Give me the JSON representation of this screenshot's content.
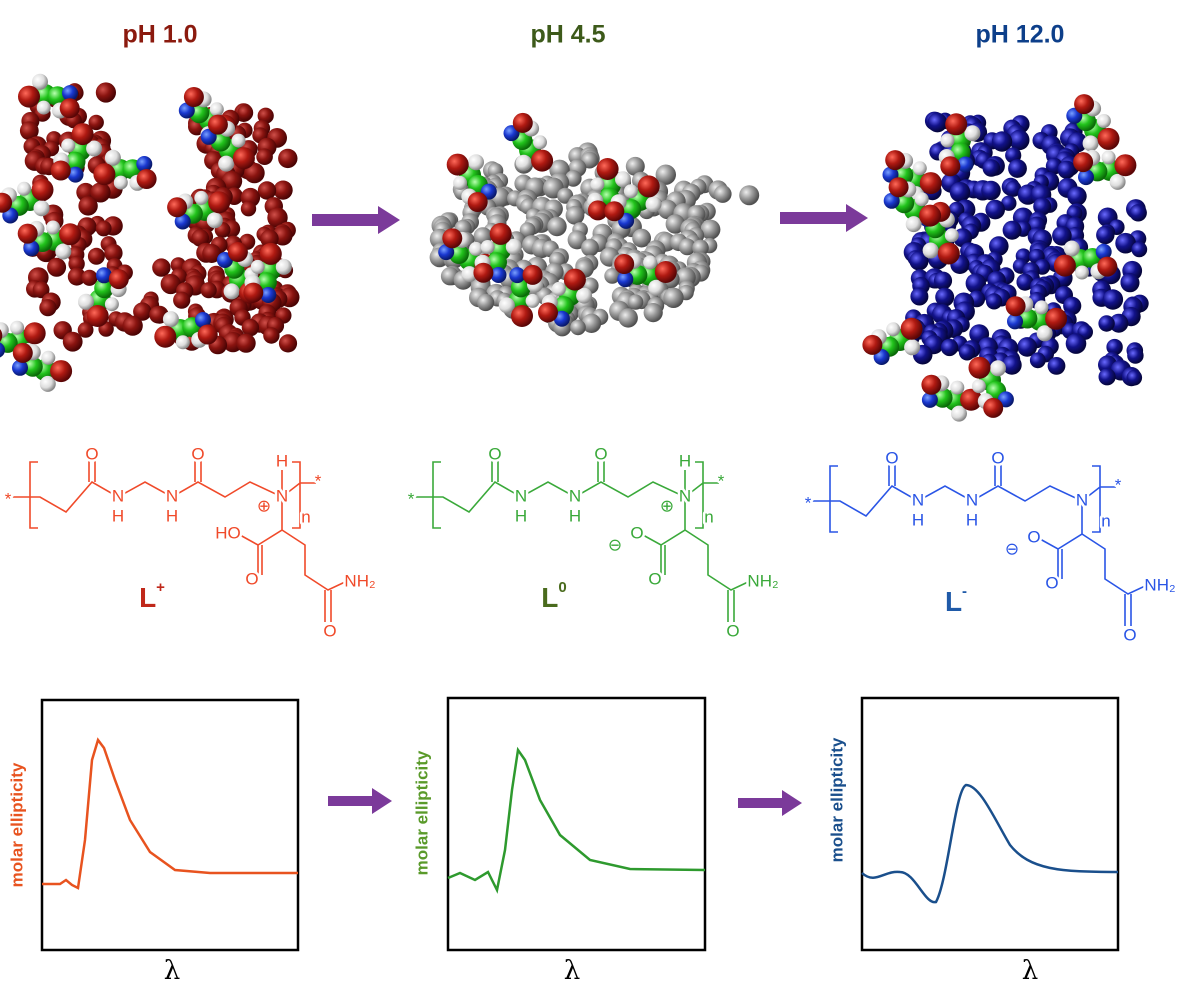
{
  "panels": [
    {
      "title": "pH 1.0",
      "atoms": [
        "*",
        "O",
        "N",
        "H",
        "N",
        "H",
        "O",
        "N",
        "H",
        "⊕",
        "*",
        "n",
        "HO",
        "O",
        "NH₂",
        "O"
      ],
      "label": {
        "main": "L",
        "sup": "+"
      },
      "plot": {
        "y_label": "molar ellipticity",
        "x_label": "λ"
      }
    },
    {
      "title": "pH 4.5",
      "atoms": [
        "*",
        "O",
        "N",
        "H",
        "N",
        "H",
        "O",
        "N",
        "H",
        "⊕",
        "*",
        "n",
        "⊖",
        "O",
        "O",
        "NH₂",
        "O"
      ],
      "label": {
        "main": "L",
        "sup": "0"
      },
      "plot": {
        "y_label": "molar ellipticity",
        "x_label": "λ"
      }
    },
    {
      "title": "pH 12.0",
      "atoms": [
        "*",
        "O",
        "N",
        "H",
        "N",
        "H",
        "O",
        "N",
        "*",
        "n",
        "⊖",
        "O",
        "O",
        "NH₂",
        "O"
      ],
      "label": {
        "main": "L",
        "sup": "-"
      },
      "plot": {
        "y_label": "molar ellipticity",
        "x_label": "λ"
      }
    }
  ]
}
